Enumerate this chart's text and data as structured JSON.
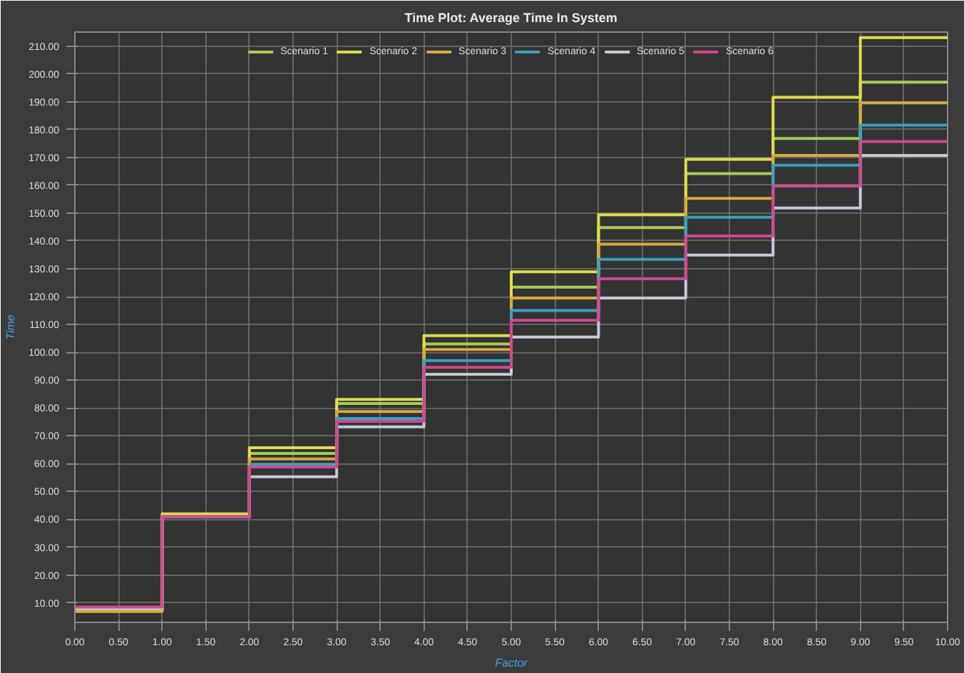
{
  "chart_data": {
    "type": "step",
    "title": "Time Plot: Average Time In System",
    "xlabel": "Factor",
    "ylabel": "Time",
    "x": [
      0,
      1,
      2,
      3,
      4,
      5,
      6,
      7,
      8,
      9,
      10
    ],
    "series": [
      {
        "name": "Scenario 1",
        "color": "#a8cc58",
        "values": [
          7.5,
          41,
          63.7,
          81.6,
          103,
          123.4,
          144.8,
          164.2,
          176.8,
          197,
          197
        ]
      },
      {
        "name": "Scenario 2",
        "color": "#e0dc50",
        "values": [
          7,
          42,
          65.7,
          83.1,
          106,
          128.9,
          149.4,
          169.3,
          191.6,
          213,
          213
        ]
      },
      {
        "name": "Scenario 3",
        "color": "#d8a840",
        "values": [
          7,
          41,
          61.7,
          78.7,
          101,
          119.5,
          138.8,
          155.3,
          170.7,
          189.6,
          189.6
        ]
      },
      {
        "name": "Scenario 4",
        "color": "#3aa0c0",
        "values": [
          null,
          null,
          59.8,
          76.2,
          97,
          115,
          133.4,
          148.5,
          167.2,
          181.6,
          181.6
        ]
      },
      {
        "name": "Scenario 5",
        "color": "#c8c8d8",
        "values": [
          8,
          41,
          55.3,
          73.2,
          92.1,
          105.5,
          119.5,
          134.9,
          151.8,
          170.7,
          170.7
        ]
      },
      {
        "name": "Scenario 6",
        "color": "#d04890",
        "values": [
          8.5,
          41,
          58.8,
          75.2,
          94.6,
          111.5,
          126.4,
          141.8,
          159.7,
          175.7,
          175.7
        ]
      }
    ],
    "xlim": [
      0,
      10
    ],
    "ylim": [
      3,
      215
    ],
    "xticks": [
      {
        "value": 0,
        "label": "0.00"
      },
      {
        "value": 0.5,
        "label": "0.50"
      },
      {
        "value": 1,
        "label": "1.00"
      },
      {
        "value": 1.5,
        "label": "1.50"
      },
      {
        "value": 2,
        "label": "2.00"
      },
      {
        "value": 2.5,
        "label": "2.50"
      },
      {
        "value": 3,
        "label": "3.00"
      },
      {
        "value": 3.5,
        "label": "3.50"
      },
      {
        "value": 4,
        "label": "4.00"
      },
      {
        "value": 4.5,
        "label": "4.50"
      },
      {
        "value": 5,
        "label": "5.00"
      },
      {
        "value": 5.5,
        "label": "5.50"
      },
      {
        "value": 6,
        "label": "6.00"
      },
      {
        "value": 6.5,
        "label": "6.50"
      },
      {
        "value": 7,
        "label": "7.00"
      },
      {
        "value": 7.5,
        "label": "7.50"
      },
      {
        "value": 8,
        "label": "8.00"
      },
      {
        "value": 8.5,
        "label": "8.50"
      },
      {
        "value": 9,
        "label": "9.00"
      },
      {
        "value": 9.5,
        "label": "9.50"
      },
      {
        "value": 10,
        "label": "10.00"
      }
    ],
    "yticks": [
      {
        "value": 10,
        "label": "10.00"
      },
      {
        "value": 20,
        "label": "20.00"
      },
      {
        "value": 30,
        "label": "30.00"
      },
      {
        "value": 40,
        "label": "40.00"
      },
      {
        "value": 50,
        "label": "50.00"
      },
      {
        "value": 60,
        "label": "60.00"
      },
      {
        "value": 70,
        "label": "70.00"
      },
      {
        "value": 80,
        "label": "80.00"
      },
      {
        "value": 90,
        "label": "90.00"
      },
      {
        "value": 100,
        "label": "100.00"
      },
      {
        "value": 110,
        "label": "110.00"
      },
      {
        "value": 120,
        "label": "120.00"
      },
      {
        "value": 130,
        "label": "130.00"
      },
      {
        "value": 140,
        "label": "140.00"
      },
      {
        "value": 150,
        "label": "150.00"
      },
      {
        "value": 160,
        "label": "160.00"
      },
      {
        "value": 170,
        "label": "170.00"
      },
      {
        "value": 180,
        "label": "180.00"
      },
      {
        "value": 190,
        "label": "190.00"
      },
      {
        "value": 200,
        "label": "200.00"
      },
      {
        "value": 210,
        "label": "210.00"
      }
    ],
    "grid": true,
    "legend": "top",
    "line_style": "solid"
  }
}
